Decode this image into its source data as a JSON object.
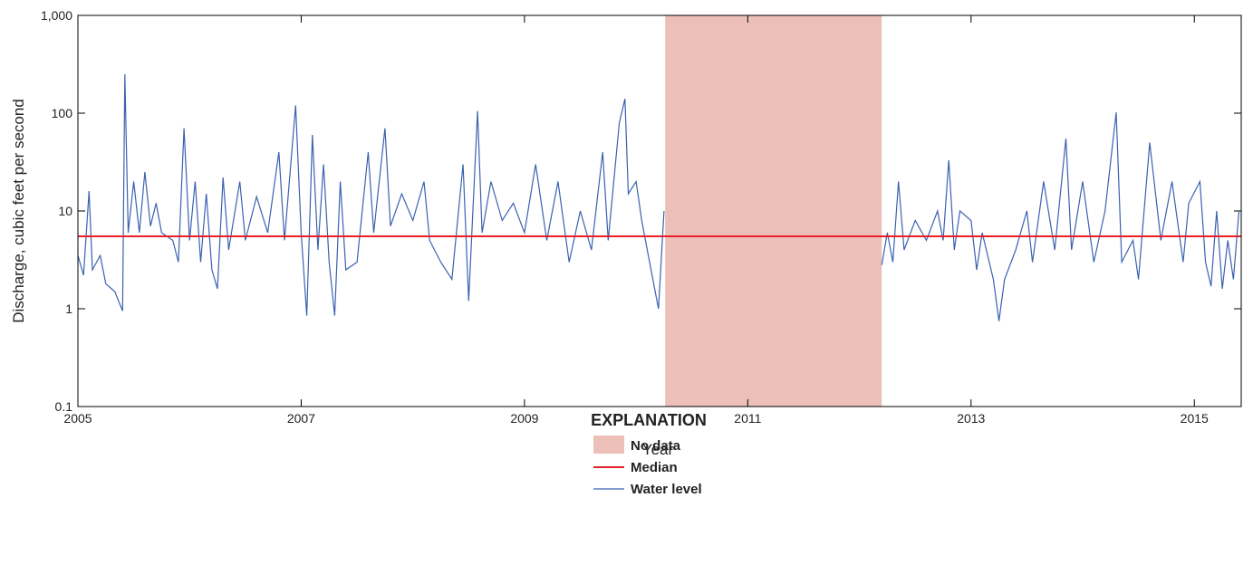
{
  "chart_data": {
    "type": "line",
    "log_y": true,
    "xlabel": "Year",
    "ylabel": "Discharge, cubic feet per second",
    "legend_title": "EXPLANATION",
    "xlim": [
      2005,
      2015.42
    ],
    "ylim": [
      0.1,
      1000
    ],
    "xticks": [
      2005,
      2007,
      2009,
      2011,
      2013,
      2015
    ],
    "yticks": [
      0.1,
      1,
      10,
      100,
      {
        "value": 1000,
        "label": "1,000"
      }
    ],
    "no_data": {
      "name": "No data",
      "range": [
        2010.26,
        2012.2
      ],
      "color": "#ecc0b8"
    },
    "median": {
      "name": "Median",
      "value": 5.5,
      "color": "#e8202a"
    },
    "x": [
      2005.0,
      2005.05,
      2005.1,
      2005.13,
      2005.2,
      2005.25,
      2005.33,
      2005.4,
      2005.42,
      2005.45,
      2005.5,
      2005.55,
      2005.6,
      2005.65,
      2005.7,
      2005.75,
      2005.85,
      2005.9,
      2005.95,
      2006.0,
      2006.05,
      2006.1,
      2006.15,
      2006.2,
      2006.25,
      2006.3,
      2006.35,
      2006.45,
      2006.5,
      2006.6,
      2006.7,
      2006.8,
      2006.85,
      2006.95,
      2007.0,
      2007.05,
      2007.1,
      2007.15,
      2007.2,
      2007.25,
      2007.3,
      2007.35,
      2007.4,
      2007.5,
      2007.6,
      2007.65,
      2007.75,
      2007.8,
      2007.9,
      2008.0,
      2008.1,
      2008.15,
      2008.25,
      2008.35,
      2008.45,
      2008.5,
      2008.58,
      2008.62,
      2008.7,
      2008.8,
      2008.9,
      2009.0,
      2009.1,
      2009.2,
      2009.3,
      2009.4,
      2009.5,
      2009.6,
      2009.7,
      2009.75,
      2009.85,
      2009.9,
      2009.93,
      2010.0,
      2010.05,
      2010.1,
      2010.15,
      2010.2,
      2010.25,
      2011.2,
      2012.2,
      2012.25,
      2012.3,
      2012.35,
      2012.4,
      2012.5,
      2012.6,
      2012.7,
      2012.75,
      2012.8,
      2012.85,
      2012.9,
      2013.0,
      2013.05,
      2013.1,
      2013.2,
      2013.25,
      2013.3,
      2013.4,
      2013.5,
      2013.55,
      2013.65,
      2013.75,
      2013.85,
      2013.9,
      2014.0,
      2014.1,
      2014.2,
      2014.3,
      2014.35,
      2014.45,
      2014.5,
      2014.6,
      2014.7,
      2014.8,
      2014.9,
      2014.95,
      2015.05,
      2015.1,
      2015.15,
      2015.2,
      2015.25,
      2015.3,
      2015.35,
      2015.4
    ],
    "series": [
      {
        "name": "Water level",
        "color": "#3a62b0",
        "values": [
          3.5,
          2.2,
          16,
          2.5,
          3.5,
          1.8,
          1.5,
          0.95,
          250,
          6,
          20,
          6,
          25,
          7,
          12,
          6,
          5,
          3,
          70,
          5,
          20,
          3,
          15,
          2.5,
          1.6,
          22,
          4,
          20,
          5,
          14,
          6,
          40,
          5,
          120,
          6,
          0.85,
          60,
          4,
          30,
          3,
          0.85,
          20,
          2.5,
          3,
          40,
          6,
          70,
          7,
          15,
          8,
          20,
          5,
          3,
          2,
          30,
          1.2,
          105,
          6,
          20,
          8,
          12,
          6,
          30,
          5,
          20,
          3,
          10,
          4,
          40,
          5,
          80,
          140,
          15,
          20,
          8,
          4,
          2,
          1,
          10,
          null,
          2.8,
          6,
          3,
          20,
          4,
          8,
          5,
          10,
          5,
          33,
          4,
          10,
          8,
          2.5,
          6,
          2,
          0.75,
          2,
          4,
          10,
          3,
          20,
          4,
          55,
          4,
          20,
          3,
          10,
          102,
          3,
          5,
          2,
          50,
          5,
          20,
          3,
          12,
          20,
          3,
          1.7,
          10,
          1.6,
          5,
          2,
          10
        ]
      }
    ]
  }
}
